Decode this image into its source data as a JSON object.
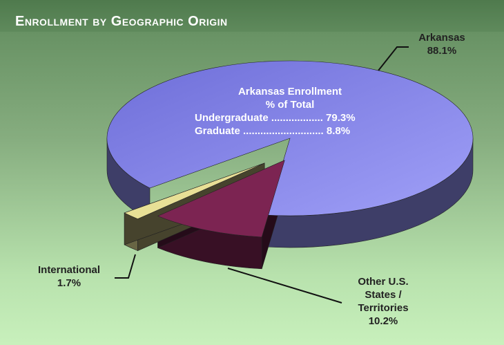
{
  "chart_data": {
    "type": "pie3d",
    "title": "Enrollment by Geographic Origin",
    "categories": [
      "Arkansas",
      "Other U.S. States / Territories",
      "International"
    ],
    "values": [
      88.1,
      10.2,
      1.7
    ],
    "value_labels": [
      "88.1%",
      "10.2%",
      "1.7%"
    ],
    "colors": [
      "#8a8ae8",
      "#7c2452",
      "#e8e096"
    ],
    "annotations": {
      "title": "Arkansas Enrollment",
      "subtitle": "% of Total",
      "lines": [
        "Undergraduate .................. 79.3%",
        "Graduate ............................ 8.8%"
      ]
    }
  }
}
